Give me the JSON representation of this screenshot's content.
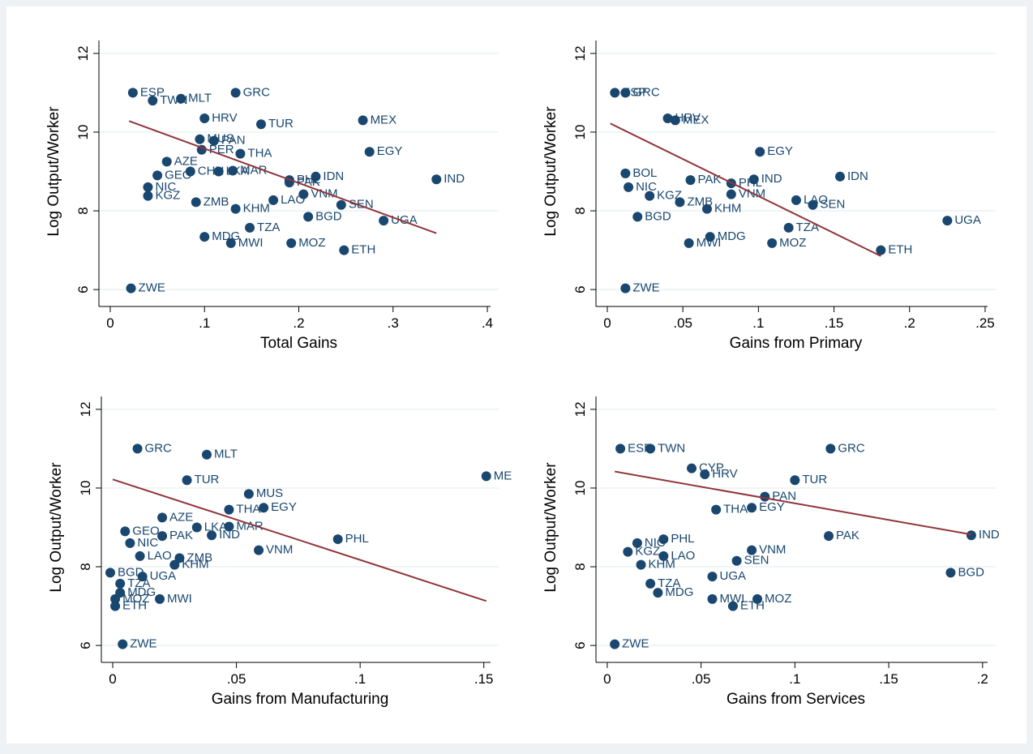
{
  "chart_data": [
    {
      "type": "scatter",
      "xlabel": "Total Gains",
      "ylabel": "Log Output/Worker",
      "color": "#1a476f",
      "grid": true,
      "point_labels": [
        "GRC",
        "MEX",
        "TUR",
        "EGY",
        "THA",
        "IND",
        "IDN",
        "PHL",
        "PAK",
        "VNM",
        "LAO",
        "SEN",
        "BGD",
        "UGA",
        "KHM",
        "ZMB",
        "TZA",
        "MOZ",
        "MWI",
        "MDG",
        "ETH",
        "ZWE",
        "NIC",
        "KGZ",
        "MAR",
        "LKA",
        "PAN",
        "HRV",
        "MLT",
        "ESP",
        "TWN",
        "PER",
        "MUS",
        "GEO",
        "AZE",
        "CHN"
      ],
      "x": [
        0.133,
        0.268,
        0.16,
        0.275,
        0.138,
        0.346,
        0.218,
        0.19,
        0.19,
        0.205,
        0.173,
        0.245,
        0.21,
        0.29,
        0.133,
        0.091,
        0.148,
        0.192,
        0.128,
        0.1,
        0.248,
        0.022,
        0.04,
        0.04,
        0.13,
        0.115,
        0.11,
        0.1,
        0.075,
        0.024,
        0.045,
        0.097,
        0.095,
        0.05,
        0.06,
        0.085
      ],
      "y": [
        11.0,
        10.3,
        10.2,
        9.5,
        9.45,
        8.8,
        8.87,
        8.78,
        8.72,
        8.42,
        8.27,
        8.15,
        7.85,
        7.75,
        8.05,
        8.22,
        7.57,
        7.18,
        7.18,
        7.34,
        7.0,
        6.03,
        8.6,
        8.38,
        9.02,
        9.0,
        9.78,
        10.35,
        10.85,
        11.0,
        10.8,
        9.55,
        9.82,
        8.9,
        9.25,
        9.0
      ],
      "fit": {
        "color": "#90353b",
        "x": [
          0.02,
          0.346
        ],
        "y": [
          10.28,
          7.43
        ]
      },
      "xlim": [
        -0.012,
        0.412
      ],
      "ylim": [
        5.57,
        12.43
      ],
      "xticks": [
        0,
        {
          "value": 0.1,
          "label": ".1"
        },
        {
          "value": 0.2,
          "label": ".2"
        },
        {
          "value": 0.3,
          "label": ".3"
        },
        {
          "value": 0.4,
          "label": ".4"
        }
      ],
      "yticks": [
        6,
        8,
        10,
        12
      ]
    },
    {
      "type": "scatter",
      "xlabel": "Gains from Primary",
      "ylabel": "Log Output/Worker",
      "color": "#1a476f",
      "grid": true,
      "point_labels": [
        "EGY",
        "IDN",
        "IND",
        "PHL",
        "PAK",
        "VNM",
        "LAO",
        "SEN",
        "UGA",
        "TZA",
        "ETH",
        "MOZ",
        "MDG",
        "MWI",
        "KHM",
        "ZMB",
        "KGZ",
        "NIC",
        "BGD",
        "ZWE",
        "BOL",
        "MEX",
        "HRV",
        "GRC",
        "ESP"
      ],
      "x": [
        0.101,
        0.154,
        0.097,
        0.082,
        0.055,
        0.082,
        0.125,
        0.136,
        0.225,
        0.12,
        0.181,
        0.109,
        0.068,
        0.054,
        0.066,
        0.048,
        0.028,
        0.014,
        0.02,
        0.012,
        0.012,
        0.045,
        0.04,
        0.012,
        0.005
      ],
      "y": [
        9.5,
        8.87,
        8.8,
        8.7,
        8.78,
        8.42,
        8.27,
        8.15,
        7.75,
        7.57,
        7.0,
        7.18,
        7.34,
        7.18,
        8.05,
        8.22,
        8.38,
        8.6,
        7.85,
        6.03,
        8.95,
        10.3,
        10.35,
        11.0,
        11.0
      ],
      "fit": {
        "color": "#90353b",
        "x": [
          0.002,
          0.181
        ],
        "y": [
          10.22,
          6.85
        ]
      },
      "xlim": [
        -0.0075,
        0.257
      ],
      "ylim": [
        5.57,
        12.43
      ],
      "xticks": [
        0,
        {
          "value": 0.05,
          "label": ".05"
        },
        {
          "value": 0.1,
          "label": ".1"
        },
        {
          "value": 0.15,
          "label": ".15"
        },
        {
          "value": 0.2,
          "label": ".2"
        },
        {
          "value": 0.25,
          "label": ".25"
        }
      ],
      "yticks": [
        6,
        8,
        10,
        12
      ]
    },
    {
      "type": "scatter",
      "xlabel": "Gains from Manufacturing",
      "ylabel": "Log Output/Worker",
      "color": "#1a476f",
      "grid": true,
      "point_labels": [
        "MLT",
        "ME",
        "MUS",
        "EGY",
        "THA",
        "PHL",
        "VNM",
        "IND",
        "MAR",
        "LKA",
        "ZMB",
        "KHM",
        "UGA",
        "BGD",
        "TZA",
        "MDG",
        "MOZ",
        "MWI",
        "ETH",
        "ZWE",
        "LAO",
        "NIC",
        "PAK",
        "AZE",
        "TUR",
        "GEO",
        "GRC"
      ],
      "x": [
        0.038,
        0.151,
        0.055,
        0.061,
        0.047,
        0.091,
        0.059,
        0.04,
        0.047,
        0.034,
        0.027,
        0.025,
        0.012,
        -0.001,
        0.003,
        0.003,
        0.001,
        0.019,
        0.001,
        0.004,
        0.011,
        0.007,
        0.02,
        0.02,
        0.03,
        0.005,
        0.01
      ],
      "y": [
        10.85,
        10.3,
        9.85,
        9.5,
        9.45,
        8.7,
        8.42,
        8.8,
        9.02,
        9.0,
        8.22,
        8.05,
        7.75,
        7.85,
        7.57,
        7.34,
        7.18,
        7.18,
        7.0,
        6.03,
        8.27,
        8.6,
        8.78,
        9.25,
        10.2,
        8.9,
        11.0
      ],
      "fit": {
        "color": "#90353b",
        "x": [
          0.0,
          0.151
        ],
        "y": [
          10.22,
          7.13
        ]
      },
      "xlim": [
        -0.0046,
        0.156
      ],
      "ylim": [
        5.57,
        12.43
      ],
      "xticks": [
        0,
        {
          "value": 0.05,
          "label": ".05"
        },
        {
          "value": 0.1,
          "label": ".1"
        },
        {
          "value": 0.15,
          "label": ".15"
        }
      ],
      "yticks": [
        6,
        8,
        10,
        12
      ]
    },
    {
      "type": "scatter",
      "xlabel": "Gains from Services",
      "ylabel": "Log Output/Worker",
      "color": "#1a476f",
      "grid": true,
      "point_labels": [
        "GRC",
        "TUR",
        "HRV",
        "PAN",
        "EGY",
        "THA",
        "IND",
        "PAK",
        "BGD",
        "VNM",
        "SEN",
        "UGA",
        "MOZ",
        "MWI",
        "ETH",
        "MDG",
        "TZA",
        "KHM",
        "LAO",
        "NIC",
        "PHL",
        "ZWE",
        "ESP",
        "TWN",
        "CYP",
        "KGZ"
      ],
      "x": [
        0.119,
        0.1,
        0.052,
        0.084,
        0.077,
        0.058,
        0.194,
        0.118,
        0.183,
        0.077,
        0.069,
        0.056,
        0.08,
        0.056,
        0.067,
        0.027,
        0.023,
        0.018,
        0.03,
        0.016,
        0.03,
        0.004,
        0.007,
        0.023,
        0.045,
        0.011
      ],
      "y": [
        11.0,
        10.2,
        10.35,
        9.78,
        9.5,
        9.45,
        8.8,
        8.78,
        7.85,
        8.42,
        8.15,
        7.75,
        7.18,
        7.18,
        7.0,
        7.34,
        7.57,
        8.05,
        8.27,
        8.6,
        8.7,
        6.03,
        11.0,
        11.0,
        10.5,
        8.38
      ],
      "fit": {
        "color": "#90353b",
        "x": [
          0.004,
          0.194
        ],
        "y": [
          10.42,
          8.82
        ]
      },
      "xlim": [
        -0.006,
        0.207
      ],
      "ylim": [
        5.57,
        12.43
      ],
      "xticks": [
        0,
        {
          "value": 0.05,
          "label": ".05"
        },
        {
          "value": 0.1,
          "label": ".1"
        },
        {
          "value": 0.15,
          "label": ".15"
        },
        {
          "value": 0.2,
          "label": ".2"
        }
      ],
      "yticks": [
        6,
        8,
        10,
        12
      ]
    }
  ]
}
